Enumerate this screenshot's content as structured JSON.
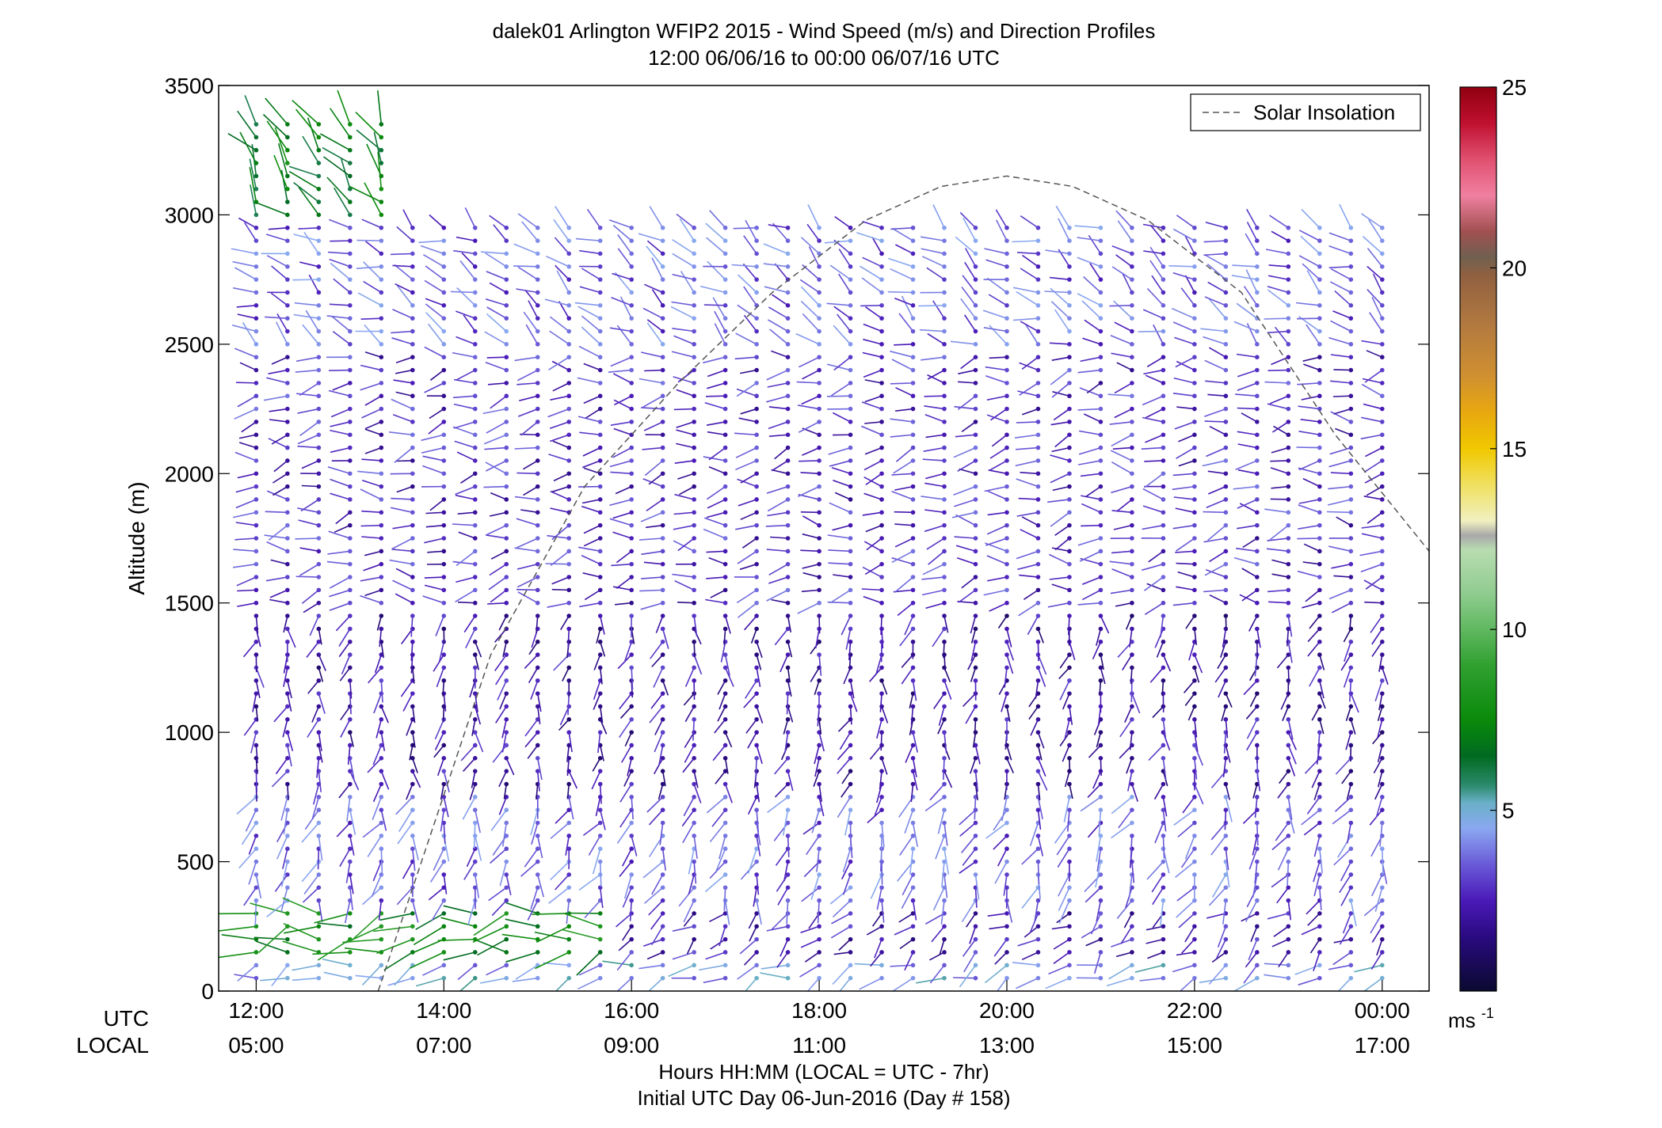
{
  "chart_data": {
    "type": "wind-barb-profile",
    "title_line1": "dalek01 Arlington WFIP2 2015 - Wind Speed (m/s) and Direction Profiles",
    "title_line2": "12:00 06/06/16 to 00:00 06/07/16  UTC",
    "ylabel": "Altitude (m)",
    "ylim": [
      0,
      3500
    ],
    "yticks": [
      0,
      500,
      1000,
      1500,
      2000,
      2500,
      3000,
      3500
    ],
    "x_row_label_utc": "UTC",
    "x_row_label_local": "LOCAL",
    "xlim_hours_utc": [
      11.6,
      24.5
    ],
    "xticks_utc_hours": [
      12,
      14,
      16,
      18,
      20,
      22,
      24
    ],
    "xtick_labels_utc": [
      "12:00",
      "14:00",
      "16:00",
      "18:00",
      "20:00",
      "22:00",
      "00:00"
    ],
    "xtick_labels_local": [
      "05:00",
      "07:00",
      "09:00",
      "11:00",
      "13:00",
      "15:00",
      "17:00"
    ],
    "xlabel_line1": "Hours HH:MM  (LOCAL = UTC - 7hr)",
    "xlabel_line2": "Initial UTC Day 06-Jun-2016 (Day # 158)",
    "legend": {
      "label": "Solar Insolation",
      "style": "dashed",
      "color": "#555555",
      "position": "top-right"
    },
    "solar_insolation": {
      "peak_time_utc_hours": 20.0,
      "peak_altitude_m": 3150,
      "x": [
        13.3,
        14.5,
        15.5,
        16.5,
        17.5,
        18.5,
        19.3,
        20.0,
        20.7,
        21.5,
        22.5,
        23.5,
        24.5
      ],
      "y": [
        0,
        1300,
        1950,
        2350,
        2700,
        2980,
        3110,
        3150,
        3110,
        2980,
        2700,
        2150,
        1700
      ]
    },
    "colorbar": {
      "min": 0,
      "max": 25,
      "ticks": [
        5,
        10,
        15,
        20,
        25
      ],
      "unit_label": "ms",
      "unit_exponent": "-1",
      "stops": [
        [
          0,
          "#0a0a30"
        ],
        [
          1.5,
          "#2a0a80"
        ],
        [
          2.5,
          "#4a1ab8"
        ],
        [
          3.5,
          "#6a5ad8"
        ],
        [
          4.5,
          "#8aa8f0"
        ],
        [
          5.2,
          "#6ab0c8"
        ],
        [
          5.7,
          "#2a8a6a"
        ],
        [
          6.5,
          "#006a20"
        ],
        [
          7.5,
          "#0a8a0a"
        ],
        [
          9,
          "#30a030"
        ],
        [
          10,
          "#60b860"
        ],
        [
          11,
          "#90cc90"
        ],
        [
          12.2,
          "#b8dcb0"
        ],
        [
          12.6,
          "#a8a8a8"
        ],
        [
          13,
          "#f0f0c0"
        ],
        [
          14,
          "#f0e060"
        ],
        [
          15,
          "#f0c800"
        ],
        [
          16,
          "#e8a810"
        ],
        [
          17,
          "#d09030"
        ],
        [
          18.5,
          "#b07840"
        ],
        [
          19.8,
          "#906040"
        ],
        [
          20.3,
          "#706050"
        ],
        [
          21,
          "#a05050"
        ],
        [
          22,
          "#f080a0"
        ],
        [
          23,
          "#e05070"
        ],
        [
          24,
          "#c01030"
        ],
        [
          25,
          "#900010"
        ]
      ]
    },
    "barbs": {
      "start_time_utc_hours": 12.0,
      "end_time_utc_hours": 24.0,
      "time_step_min": 20,
      "altitude_start_m": 50,
      "altitude_step_m": 50,
      "altitude_top_m": 3400,
      "description_levels": [
        {
          "alt_from": 0,
          "alt_to": 120,
          "speed_mps": 4.5,
          "dir_deg": 250
        },
        {
          "alt_from": 120,
          "alt_to": 320,
          "speed_mps": 7.5,
          "dir_deg": 260,
          "t_to": 16.0
        },
        {
          "alt_from": 120,
          "alt_to": 320,
          "speed_mps": 2.5,
          "dir_deg": 230,
          "t_from": 16.0
        },
        {
          "alt_from": 320,
          "alt_to": 800,
          "speed_mps": 3.5,
          "dir_deg": 200
        },
        {
          "alt_from": 800,
          "alt_to": 1500,
          "speed_mps": 2.2,
          "dir_deg": 190
        },
        {
          "alt_from": 1500,
          "alt_to": 2500,
          "speed_mps": 2.8,
          "dir_deg": 265
        },
        {
          "alt_from": 2500,
          "alt_to": 3000,
          "speed_mps": 3.5,
          "dir_deg": 300
        },
        {
          "alt_from": 3000,
          "alt_to": 3400,
          "speed_mps": 7.0,
          "dir_deg": 320,
          "t_to": 13.6
        }
      ]
    }
  }
}
